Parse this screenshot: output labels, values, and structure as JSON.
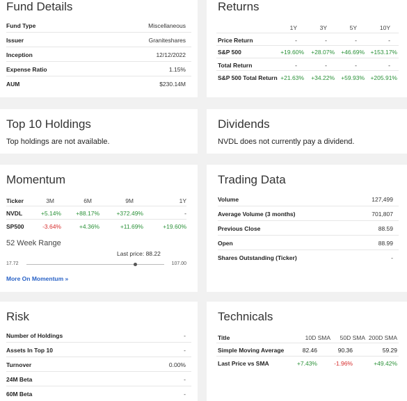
{
  "fund_details": {
    "title": "Fund Details",
    "rows": [
      {
        "label": "Fund Type",
        "value": "Miscellaneous"
      },
      {
        "label": "Issuer",
        "value": "Graniteshares"
      },
      {
        "label": "Inception",
        "value": "12/12/2022"
      },
      {
        "label": "Expense Ratio",
        "value": "1.15%"
      },
      {
        "label": "AUM",
        "value": "$230.14M"
      }
    ]
  },
  "returns": {
    "title": "Returns",
    "columns": [
      "1Y",
      "3Y",
      "5Y",
      "10Y"
    ],
    "rows": [
      {
        "label": "Price Return",
        "values": [
          "-",
          "-",
          "-",
          "-"
        ]
      },
      {
        "label": "S&P 500",
        "values": [
          "+19.60%",
          "+28.07%",
          "+46.69%",
          "+153.17%"
        ]
      },
      {
        "label": "Total Return",
        "values": [
          "-",
          "-",
          "-",
          "-"
        ]
      },
      {
        "label": "S&P 500 Total Return",
        "values": [
          "+21.63%",
          "+34.22%",
          "+59.93%",
          "+205.91%"
        ]
      }
    ]
  },
  "top10": {
    "title": "Top 10 Holdings",
    "message": "Top holdings are not available."
  },
  "dividends": {
    "title": "Dividends",
    "message": "NVDL does not currently pay a dividend."
  },
  "momentum": {
    "title": "Momentum",
    "columns": [
      "Ticker",
      "3M",
      "6M",
      "9M",
      "1Y"
    ],
    "rows": [
      {
        "ticker": "NVDL",
        "values": [
          "+5.14%",
          "+88.17%",
          "+372.49%",
          "-"
        ]
      },
      {
        "ticker": "SP500",
        "values": [
          "-3.64%",
          "+4.36%",
          "+11.69%",
          "+19.60%"
        ]
      }
    ],
    "range_title": "52 Week Range",
    "last_price_label": "Last price: 88.22",
    "range_low": "17.72",
    "range_high": "107.00",
    "range_fraction": 0.79,
    "link": "More On Momentum »"
  },
  "trading_data": {
    "title": "Trading Data",
    "rows": [
      {
        "label": "Volume",
        "value": "127,499"
      },
      {
        "label": "Average Volume (3 months)",
        "value": "701,807"
      },
      {
        "label": "Previous Close",
        "value": "88.59"
      },
      {
        "label": "Open",
        "value": "88.99"
      },
      {
        "label": "Shares Outstanding (Ticker)",
        "value": "-"
      }
    ]
  },
  "risk": {
    "title": "Risk",
    "rows": [
      {
        "label": "Number of Holdings",
        "value": "-"
      },
      {
        "label": "Assets In Top 10",
        "value": "-"
      },
      {
        "label": "Turnover",
        "value": "0.00%"
      },
      {
        "label": "24M Beta",
        "value": "-"
      },
      {
        "label": "60M Beta",
        "value": "-"
      }
    ]
  },
  "technicals": {
    "title": "Technicals",
    "columns": [
      "Title",
      "10D SMA",
      "50D SMA",
      "200D SMA"
    ],
    "rows": [
      {
        "label": "Simple Moving Average",
        "values": [
          "82.46",
          "90.36",
          "59.29"
        ]
      },
      {
        "label": "Last Price vs SMA",
        "values": [
          "+7.43%",
          "-1.96%",
          "+49.42%"
        ]
      }
    ]
  },
  "colors": {
    "positive": "#2a9138",
    "negative": "#d62d2d",
    "link": "#2962c6"
  }
}
